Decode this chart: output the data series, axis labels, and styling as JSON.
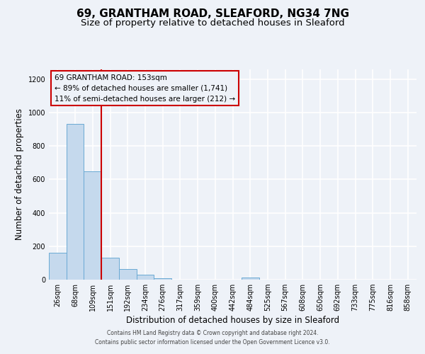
{
  "title": "69, GRANTHAM ROAD, SLEAFORD, NG34 7NG",
  "subtitle": "Size of property relative to detached houses in Sleaford",
  "xlabel": "Distribution of detached houses by size in Sleaford",
  "ylabel": "Number of detached properties",
  "bar_color": "#c5d9ed",
  "bar_edge_color": "#6aaad4",
  "categories": [
    "26sqm",
    "68sqm",
    "109sqm",
    "151sqm",
    "192sqm",
    "234sqm",
    "276sqm",
    "317sqm",
    "359sqm",
    "400sqm",
    "442sqm",
    "484sqm",
    "525sqm",
    "567sqm",
    "608sqm",
    "650sqm",
    "692sqm",
    "733sqm",
    "775sqm",
    "816sqm",
    "858sqm"
  ],
  "values": [
    160,
    930,
    650,
    130,
    63,
    28,
    10,
    0,
    0,
    0,
    0,
    13,
    0,
    0,
    0,
    0,
    0,
    0,
    0,
    0,
    0
  ],
  "ylim": [
    0,
    1260
  ],
  "yticks": [
    0,
    200,
    400,
    600,
    800,
    1000,
    1200
  ],
  "property_line_x": 2.5,
  "property_line_color": "#cc0000",
  "annotation_text_line1": "69 GRANTHAM ROAD: 153sqm",
  "annotation_text_line2": "← 89% of detached houses are smaller (1,741)",
  "annotation_text_line3": "11% of semi-detached houses are larger (212) →",
  "annotation_box_color": "#cc0000",
  "footer_line1": "Contains HM Land Registry data © Crown copyright and database right 2024.",
  "footer_line2": "Contains public sector information licensed under the Open Government Licence v3.0.",
  "background_color": "#eef2f8",
  "grid_color": "#ffffff",
  "title_fontsize": 11,
  "subtitle_fontsize": 9.5,
  "axis_label_fontsize": 8.5,
  "tick_fontsize": 7,
  "annotation_fontsize": 7.5,
  "footer_fontsize": 5.5
}
